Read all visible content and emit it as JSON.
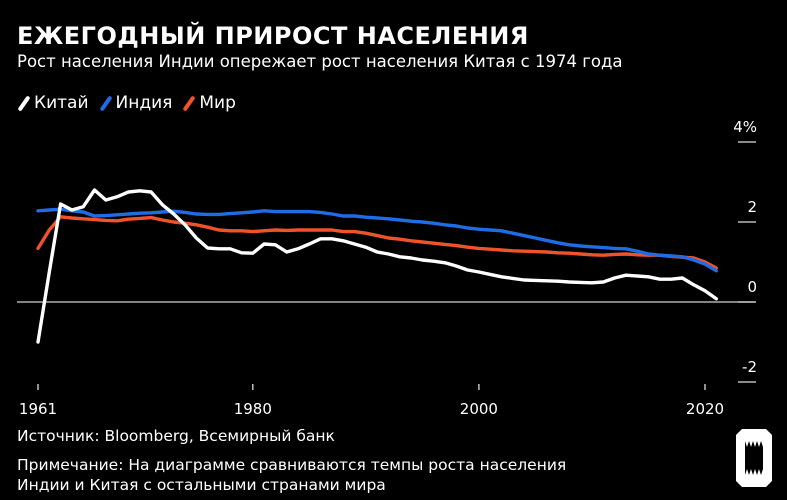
{
  "header": {
    "title": "ЕЖЕГОДНЫЙ ПРИРОСТ НАСЕЛЕНИЯ",
    "subtitle": "Рост населения Индии опережает рост населения Китая с 1974 года"
  },
  "footer": {
    "source": "Источник: Bloomberg, Всемирный банк",
    "note_line1": "Примечание: На диаграмме сравниваются темпы роста населения",
    "note_line2": "Индии и Китая с остальными странами мира"
  },
  "logo": {
    "text": "Bloomberg"
  },
  "chart_data": {
    "type": "line",
    "title": "ЕЖЕГОДНЫЙ ПРИРОСТ НАСЕЛЕНИЯ",
    "ylabel": "",
    "xlabel": "",
    "x_start": 1961,
    "x_end": 2021,
    "xlim": [
      1961,
      2021
    ],
    "ylim": [
      -2,
      4
    ],
    "x_ticks": [
      1961,
      1980,
      2000,
      2020
    ],
    "x_tick_labels": [
      "1961",
      "1980",
      "2000",
      "2020"
    ],
    "y_ticks": [
      4,
      2,
      0,
      -2
    ],
    "y_tick_labels": [
      "4%",
      "2",
      "0",
      "-2"
    ],
    "grid": false,
    "legend_position": "top-left",
    "series": [
      {
        "name": "Китай",
        "color": "#ffffff",
        "values": [
          -1.0,
          0.75,
          2.45,
          2.3,
          2.38,
          2.8,
          2.55,
          2.63,
          2.75,
          2.78,
          2.75,
          2.43,
          2.2,
          1.93,
          1.6,
          1.35,
          1.33,
          1.33,
          1.23,
          1.22,
          1.45,
          1.43,
          1.25,
          1.33,
          1.45,
          1.58,
          1.58,
          1.53,
          1.45,
          1.37,
          1.25,
          1.2,
          1.13,
          1.1,
          1.05,
          1.02,
          0.98,
          0.9,
          0.8,
          0.75,
          0.69,
          0.63,
          0.59,
          0.55,
          0.54,
          0.53,
          0.52,
          0.5,
          0.49,
          0.48,
          0.5,
          0.6,
          0.67,
          0.65,
          0.63,
          0.57,
          0.57,
          0.6,
          0.43,
          0.28,
          0.08
        ]
      },
      {
        "name": "Индия",
        "color": "#1f6ce6",
        "values": [
          2.28,
          2.3,
          2.32,
          2.28,
          2.25,
          2.15,
          2.16,
          2.18,
          2.2,
          2.22,
          2.23,
          2.25,
          2.27,
          2.24,
          2.2,
          2.19,
          2.19,
          2.21,
          2.23,
          2.25,
          2.28,
          2.26,
          2.26,
          2.26,
          2.26,
          2.24,
          2.2,
          2.15,
          2.15,
          2.12,
          2.1,
          2.08,
          2.05,
          2.02,
          2.0,
          1.97,
          1.93,
          1.9,
          1.85,
          1.82,
          1.8,
          1.78,
          1.72,
          1.66,
          1.6,
          1.54,
          1.48,
          1.43,
          1.4,
          1.38,
          1.36,
          1.34,
          1.33,
          1.27,
          1.2,
          1.17,
          1.15,
          1.13,
          1.05,
          0.95,
          0.78
        ]
      },
      {
        "name": "Мир",
        "color": "#f0522a",
        "values": [
          1.34,
          1.8,
          2.13,
          2.1,
          2.08,
          2.06,
          2.04,
          2.03,
          2.07,
          2.09,
          2.11,
          2.05,
          2.0,
          1.97,
          1.93,
          1.87,
          1.8,
          1.78,
          1.78,
          1.76,
          1.78,
          1.8,
          1.79,
          1.8,
          1.8,
          1.8,
          1.8,
          1.76,
          1.76,
          1.72,
          1.66,
          1.6,
          1.57,
          1.53,
          1.5,
          1.47,
          1.44,
          1.41,
          1.37,
          1.34,
          1.32,
          1.3,
          1.28,
          1.27,
          1.26,
          1.25,
          1.23,
          1.22,
          1.2,
          1.18,
          1.17,
          1.19,
          1.2,
          1.18,
          1.17,
          1.17,
          1.14,
          1.12,
          1.1,
          1.0,
          0.85
        ]
      }
    ]
  }
}
